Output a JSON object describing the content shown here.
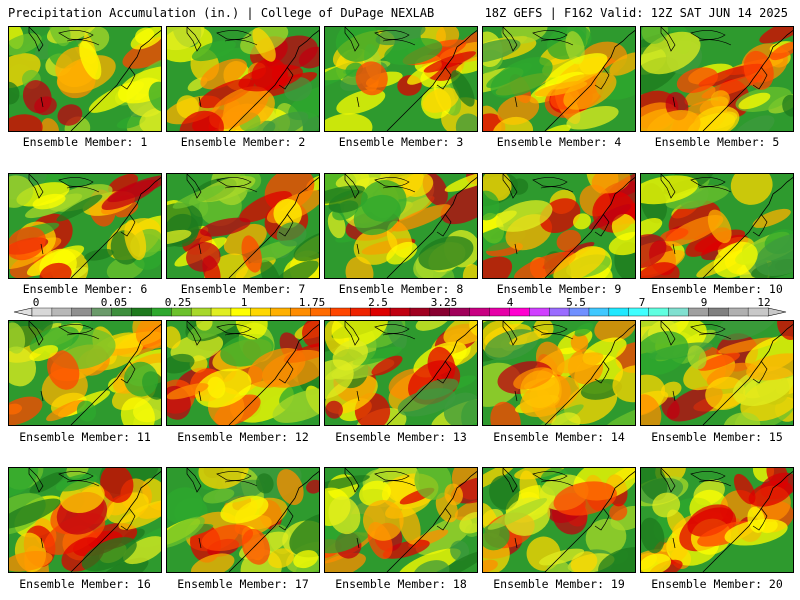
{
  "header": {
    "title_left": "Precipitation Accumulation (in.) | College of DuPage NEXLAB",
    "title_right": "18Z GEFS | F162 Valid: 12Z SAT JUN 14 2025"
  },
  "panels": [
    {
      "label": "Ensemble Member: 1"
    },
    {
      "label": "Ensemble Member: 2"
    },
    {
      "label": "Ensemble Member: 3"
    },
    {
      "label": "Ensemble Member: 4"
    },
    {
      "label": "Ensemble Member: 5"
    },
    {
      "label": "Ensemble Member: 6"
    },
    {
      "label": "Ensemble Member: 7"
    },
    {
      "label": "Ensemble Member: 8"
    },
    {
      "label": "Ensemble Member: 9"
    },
    {
      "label": "Ensemble Member: 10"
    },
    {
      "label": "Ensemble Member: 11"
    },
    {
      "label": "Ensemble Member: 12"
    },
    {
      "label": "Ensemble Member: 13"
    },
    {
      "label": "Ensemble Member: 14"
    },
    {
      "label": "Ensemble Member: 15"
    },
    {
      "label": "Ensemble Member: 16"
    },
    {
      "label": "Ensemble Member: 17"
    },
    {
      "label": "Ensemble Member: 18"
    },
    {
      "label": "Ensemble Member: 19"
    },
    {
      "label": "Ensemble Member: 20"
    }
  ],
  "colorbar": {
    "tick_labels": [
      "0",
      "0.05",
      "0.25",
      "1",
      "1.75",
      "2.5",
      "3.25",
      "4",
      "5.5",
      "7",
      "9",
      "12"
    ],
    "colors": [
      "#d8d8d8",
      "#b8b8b8",
      "#909090",
      "#6a9a6a",
      "#3d8f3d",
      "#1e7a1e",
      "#2ea82e",
      "#6cc12c",
      "#a8d82a",
      "#e0ee20",
      "#ffff00",
      "#ffd700",
      "#ffb000",
      "#ff8c00",
      "#ff6a00",
      "#ff4500",
      "#ee2200",
      "#dd0000",
      "#c00010",
      "#a00020",
      "#880030",
      "#a0005a",
      "#c80082",
      "#e600a8",
      "#ff00d0",
      "#d040ff",
      "#9a6cff",
      "#7090ff",
      "#40c8ff",
      "#20e8ff",
      "#40ffff",
      "#60ffe0",
      "#80e0d0",
      "#a0a0a0",
      "#808080",
      "#b0b0b0",
      "#c8c8c8"
    ]
  }
}
